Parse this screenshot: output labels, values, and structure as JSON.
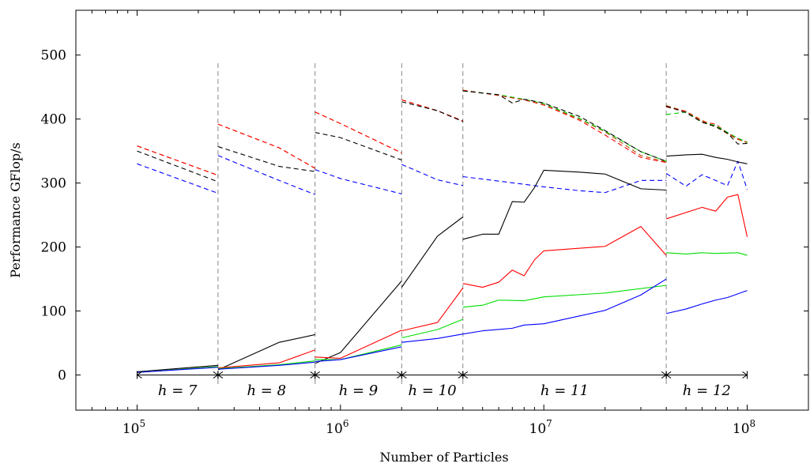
{
  "chart_data": {
    "type": "line",
    "title": "",
    "xlabel": "Number of Particles",
    "ylabel": "Performance GFlop/s",
    "xscale": "log",
    "xlim": [
      50000,
      200000000
    ],
    "ylim": [
      -55,
      570
    ],
    "y_ticks": [
      0,
      100,
      200,
      300,
      400,
      500
    ],
    "x_ticks": [
      100000,
      1000000,
      10000000,
      100000000
    ],
    "x_tick_labels": [
      "10^5",
      "10^6",
      "10^7",
      "10^8"
    ],
    "grid": false,
    "legend": "none",
    "region_boundaries": [
      250000,
      750000,
      2000000,
      4000000,
      40000000
    ],
    "regions": [
      {
        "label": "h = 7",
        "from": 100000,
        "to": 250000
      },
      {
        "label": "h = 8",
        "from": 250000,
        "to": 750000
      },
      {
        "label": "h = 9",
        "from": 750000,
        "to": 2000000
      },
      {
        "label": "h = 10",
        "from": 2000000,
        "to": 4000000
      },
      {
        "label": "h = 11",
        "from": 4000000,
        "to": 40000000
      },
      {
        "label": "h = 12",
        "from": 40000000,
        "to": 100000000
      }
    ],
    "series": [
      {
        "color": "#b35900",
        "dash": "dashed",
        "segments": [
          [
            [
              100000,
              358
            ],
            [
              250000,
              312
            ]
          ],
          [
            [
              250000,
              392
            ],
            [
              500000,
              355
            ],
            [
              750000,
              323
            ]
          ],
          [
            [
              750000,
              411
            ],
            [
              1000000,
              393
            ],
            [
              2000000,
              347
            ]
          ],
          [
            [
              2000000,
              430
            ],
            [
              3000000,
              413
            ],
            [
              4000000,
              397
            ]
          ],
          [
            [
              4000000,
              445
            ],
            [
              6000000,
              437
            ],
            [
              8000000,
              430
            ],
            [
              10000000,
              422
            ],
            [
              15000000,
              400
            ],
            [
              20000000,
              380
            ],
            [
              30000000,
              343
            ],
            [
              40000000,
              333
            ]
          ],
          [
            [
              40000000,
              421
            ],
            [
              50000000,
              412
            ],
            [
              60000000,
              398
            ],
            [
              70000000,
              388
            ],
            [
              80000000,
              377
            ],
            [
              90000000,
              368
            ],
            [
              100000000,
              363
            ]
          ]
        ]
      },
      {
        "color": "#ff0000",
        "dash": "dashed",
        "segments": [
          [
            [
              100000,
              358
            ],
            [
              250000,
              312
            ]
          ],
          [
            [
              250000,
              392
            ],
            [
              500000,
              355
            ],
            [
              750000,
              323
            ]
          ],
          [
            [
              750000,
              411
            ],
            [
              1000000,
              393
            ],
            [
              2000000,
              347
            ]
          ],
          [
            [
              2000000,
              430
            ],
            [
              3000000,
              413
            ],
            [
              4000000,
              397
            ]
          ],
          [
            [
              4000000,
              445
            ],
            [
              6000000,
              437
            ],
            [
              8000000,
              430
            ],
            [
              10000000,
              422
            ],
            [
              15000000,
              398
            ],
            [
              20000000,
              375
            ],
            [
              30000000,
              340
            ],
            [
              40000000,
              332
            ]
          ],
          [
            [
              40000000,
              419
            ],
            [
              50000000,
              412
            ],
            [
              60000000,
              396
            ],
            [
              70000000,
              392
            ],
            [
              80000000,
              378
            ],
            [
              90000000,
              369
            ],
            [
              100000000,
              364
            ]
          ]
        ]
      },
      {
        "color": "#00cc00",
        "dash": "dashed",
        "segments": [
          [
            [
              4000000,
              444
            ],
            [
              6000000,
              438
            ],
            [
              8000000,
              431
            ],
            [
              10000000,
              424
            ],
            [
              15000000,
              401
            ],
            [
              20000000,
              381
            ],
            [
              30000000,
              349
            ],
            [
              40000000,
              334
            ]
          ],
          [
            [
              40000000,
              407
            ],
            [
              45000000,
              409
            ],
            [
              50000000,
              411
            ],
            [
              60000000,
              395
            ],
            [
              70000000,
              390
            ],
            [
              80000000,
              379
            ],
            [
              90000000,
              370
            ],
            [
              100000000,
              364
            ]
          ]
        ]
      },
      {
        "color": "#000000",
        "dash": "dashed",
        "segments": [
          [
            [
              100000,
              350
            ],
            [
              250000,
              302
            ]
          ],
          [
            [
              250000,
              357
            ],
            [
              500000,
              326
            ],
            [
              750000,
              318
            ]
          ],
          [
            [
              750000,
              379
            ],
            [
              1000000,
              371
            ],
            [
              2000000,
              336
            ]
          ],
          [
            [
              2000000,
              427
            ],
            [
              3000000,
              413
            ],
            [
              4000000,
              396
            ]
          ],
          [
            [
              4000000,
              444
            ],
            [
              6000000,
              438
            ],
            [
              7000000,
              425
            ],
            [
              8000000,
              431
            ],
            [
              10000000,
              425
            ],
            [
              15000000,
              404
            ],
            [
              20000000,
              382
            ],
            [
              30000000,
              349
            ],
            [
              40000000,
              334
            ]
          ],
          [
            [
              40000000,
              420
            ],
            [
              50000000,
              410
            ],
            [
              60000000,
              395
            ],
            [
              70000000,
              388
            ],
            [
              80000000,
              378
            ],
            [
              90000000,
              361
            ],
            [
              100000000,
              362
            ]
          ]
        ]
      },
      {
        "color": "#0000ff",
        "dash": "dashed",
        "segments": [
          [
            [
              100000,
              330
            ],
            [
              250000,
              284
            ]
          ],
          [
            [
              250000,
              343
            ],
            [
              500000,
              304
            ],
            [
              750000,
              282
            ]
          ],
          [
            [
              750000,
              321
            ],
            [
              1000000,
              307
            ],
            [
              2000000,
              283
            ]
          ],
          [
            [
              2000000,
              329
            ],
            [
              3000000,
              305
            ],
            [
              4000000,
              296
            ]
          ],
          [
            [
              4000000,
              310
            ],
            [
              6000000,
              303
            ],
            [
              8000000,
              298
            ],
            [
              10000000,
              294
            ],
            [
              15000000,
              288
            ],
            [
              20000000,
              285
            ],
            [
              30000000,
              304
            ],
            [
              40000000,
              304
            ]
          ],
          [
            [
              40000000,
              315
            ],
            [
              50000000,
              295
            ],
            [
              60000000,
              313
            ],
            [
              70000000,
              304
            ],
            [
              80000000,
              296
            ],
            [
              90000000,
              334
            ],
            [
              100000000,
              290
            ]
          ]
        ]
      },
      {
        "color": "#000000",
        "dash": "solid",
        "segments": [
          [
            [
              100000,
              5
            ],
            [
              250000,
              15
            ]
          ],
          [
            [
              250000,
              8
            ],
            [
              500000,
              51
            ],
            [
              750000,
              63
            ]
          ],
          [
            [
              750000,
              18
            ],
            [
              1000000,
              35
            ],
            [
              2000000,
              147
            ]
          ],
          [
            [
              2000000,
              137
            ],
            [
              3000000,
              217
            ],
            [
              4000000,
              247
            ]
          ],
          [
            [
              4000000,
              212
            ],
            [
              5000000,
              220
            ],
            [
              6000000,
              220
            ],
            [
              7000000,
              271
            ],
            [
              8000000,
              270
            ],
            [
              9000000,
              293
            ],
            [
              10000000,
              320
            ],
            [
              15000000,
              317
            ],
            [
              20000000,
              314
            ],
            [
              30000000,
              291
            ],
            [
              40000000,
              289
            ]
          ],
          [
            [
              40000000,
              342
            ],
            [
              50000000,
              344
            ],
            [
              60000000,
              345
            ],
            [
              70000000,
              340
            ],
            [
              80000000,
              337
            ],
            [
              90000000,
              333
            ],
            [
              100000000,
              330
            ]
          ]
        ]
      },
      {
        "color": "#ff0000",
        "dash": "solid",
        "segments": [
          [
            [
              100000,
              4
            ],
            [
              250000,
              13
            ]
          ],
          [
            [
              250000,
              11
            ],
            [
              500000,
              19
            ],
            [
              750000,
              39
            ]
          ],
          [
            [
              750000,
              28
            ],
            [
              1000000,
              26
            ],
            [
              2000000,
              70
            ]
          ],
          [
            [
              2000000,
              69
            ],
            [
              3000000,
              82
            ],
            [
              4000000,
              136
            ]
          ],
          [
            [
              4000000,
              143
            ],
            [
              5000000,
              137
            ],
            [
              6000000,
              145
            ],
            [
              7000000,
              164
            ],
            [
              8000000,
              155
            ],
            [
              9000000,
              180
            ],
            [
              10000000,
              194
            ],
            [
              20000000,
              201
            ],
            [
              30000000,
              232
            ],
            [
              40000000,
              187
            ]
          ],
          [
            [
              40000000,
              244
            ],
            [
              60000000,
              262
            ],
            [
              70000000,
              256
            ],
            [
              80000000,
              278
            ],
            [
              90000000,
              282
            ],
            [
              100000000,
              216
            ]
          ]
        ]
      },
      {
        "color": "#00dd00",
        "dash": "solid",
        "segments": [
          [
            [
              100000,
              4
            ],
            [
              250000,
              13
            ]
          ],
          [
            [
              250000,
              10
            ],
            [
              500000,
              16
            ],
            [
              750000,
              22
            ]
          ],
          [
            [
              750000,
              24
            ],
            [
              1000000,
              24
            ],
            [
              2000000,
              47
            ]
          ],
          [
            [
              2000000,
              58
            ],
            [
              3000000,
              71
            ],
            [
              4000000,
              87
            ]
          ],
          [
            [
              4000000,
              106
            ],
            [
              5000000,
              109
            ],
            [
              6000000,
              117
            ],
            [
              8000000,
              116
            ],
            [
              10000000,
              122
            ],
            [
              20000000,
              128
            ],
            [
              40000000,
              140
            ]
          ],
          [
            [
              40000000,
              191
            ],
            [
              50000000,
              189
            ],
            [
              60000000,
              191
            ],
            [
              70000000,
              190
            ],
            [
              90000000,
              191
            ],
            [
              100000000,
              187
            ]
          ]
        ]
      },
      {
        "color": "#0000ff",
        "dash": "solid",
        "segments": [
          [
            [
              100000,
              4
            ],
            [
              250000,
              12
            ]
          ],
          [
            [
              250000,
              9
            ],
            [
              500000,
              15
            ],
            [
              750000,
              20
            ]
          ],
          [
            [
              750000,
              21
            ],
            [
              1000000,
              24
            ],
            [
              2000000,
              44
            ]
          ],
          [
            [
              2000000,
              51
            ],
            [
              3000000,
              57
            ],
            [
              4000000,
              64
            ]
          ],
          [
            [
              4000000,
              64
            ],
            [
              5000000,
              69
            ],
            [
              7000000,
              73
            ],
            [
              8000000,
              78
            ],
            [
              10000000,
              80
            ],
            [
              20000000,
              101
            ],
            [
              30000000,
              125
            ],
            [
              40000000,
              150
            ]
          ],
          [
            [
              40000000,
              96
            ],
            [
              50000000,
              103
            ],
            [
              60000000,
              111
            ],
            [
              70000000,
              117
            ],
            [
              80000000,
              121
            ],
            [
              100000000,
              132
            ]
          ]
        ]
      }
    ]
  }
}
